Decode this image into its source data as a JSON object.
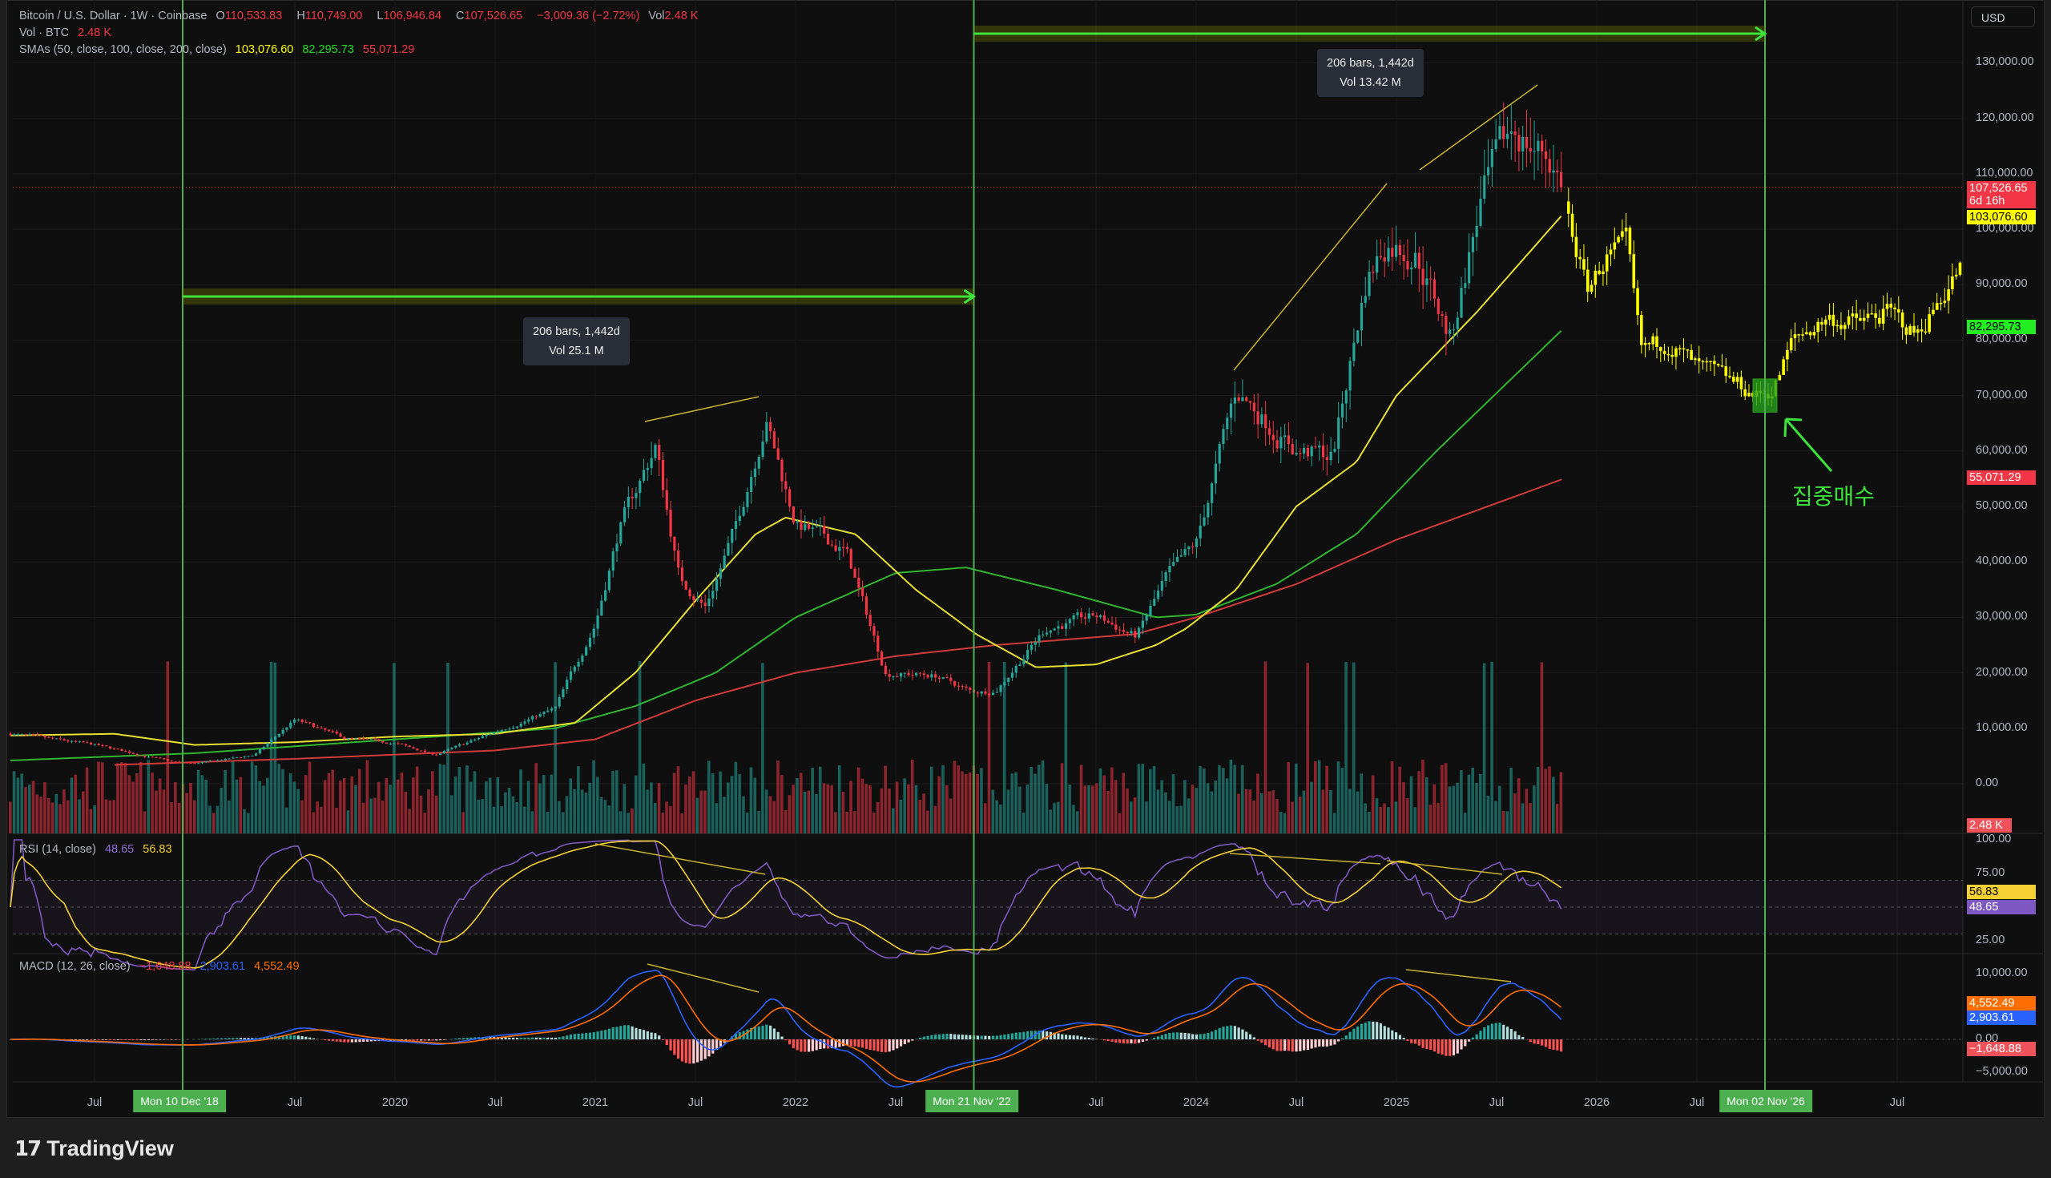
{
  "legend": {
    "symbol": "Bitcoin / U.S. Dollar · 1W · Coinbase",
    "o_label": "O",
    "o": "110,533.83",
    "h_label": "H",
    "h": "110,749.00",
    "l_label": "L",
    "l": "106,946.84",
    "c_label": "C",
    "c": "107,526.65",
    "change": "−3,009.36 (−2.72%)",
    "vol_label": "Vol",
    "vol": "2.48 K",
    "vol_title": "Vol · BTC",
    "vol_value": "2.48 K",
    "sma_title": "SMAs (50, close, 100, close, 200, close)",
    "sma50": "103,076.60",
    "sma100": "82,295.73",
    "sma200": "55,071.29",
    "rsi_title": "RSI (14, close)",
    "rsi": "48.65",
    "rsi_ma": "56.83",
    "macd_title": "MACD (12, 26, close)",
    "macd_hist": "−1,648.88",
    "macd": "2,903.61",
    "macd_signal": "4,552.49"
  },
  "currency": "USD",
  "price_tags": {
    "last": "107,526.65",
    "countdown": "6d 16h",
    "sma50": "103,076.60",
    "sma100": "82,295.73",
    "sma200": "55,071.29",
    "volume": "2.48 K",
    "rsi_ma": "56.83",
    "rsi": "48.65",
    "macd_signal": "4,552.49",
    "macd": "2,903.61",
    "macd_hist": "−1,648.88"
  },
  "measures": [
    {
      "bars": "206 bars, 1,442d",
      "vol": "Vol 25.1 M"
    },
    {
      "bars": "206 bars, 1,442d",
      "vol": "Vol 13.42 M"
    }
  ],
  "date_markers": [
    "Mon 10 Dec '18",
    "Mon 21 Nov '22",
    "Mon 02 Nov '26"
  ],
  "annotation": "집중매수",
  "brand": "TradingView",
  "colors": {
    "up": "#26a69a",
    "down": "#f23645",
    "sma50": "#e8e030",
    "sma100": "#2fb52f",
    "sma200": "#d23a3a",
    "projection": "#ffff00",
    "marker": "#4caf50",
    "rsi": "#7e57c2",
    "rsi_ma": "#f5d033",
    "macd": "#2962ff",
    "signal": "#ff6d00"
  },
  "chart_data": {
    "type": "candlestick",
    "interval": "1W",
    "price_axis": {
      "ticks": [
        "130,000.00",
        "120,000.00",
        "110,000.00",
        "100,000.00",
        "90,000.00",
        "80,000.00",
        "70,000.00",
        "60,000.00",
        "50,000.00",
        "40,000.00",
        "30,000.00",
        "20,000.00",
        "10,000.00",
        "0.00"
      ],
      "values": [
        130000,
        120000,
        110000,
        100000,
        90000,
        80000,
        70000,
        60000,
        50000,
        40000,
        30000,
        20000,
        10000,
        0
      ]
    },
    "rsi_axis": {
      "ticks": [
        "100.00",
        "75.00",
        "25.00"
      ],
      "values": [
        100,
        75,
        25
      ]
    },
    "macd_axis": {
      "ticks": [
        "10,000.00",
        "0.00",
        "−5,000.00"
      ],
      "values": [
        10000,
        0,
        -5000
      ]
    },
    "time_axis": [
      {
        "label": "Jul",
        "t": 2018.5
      },
      {
        "label": "Jul",
        "t": 2019.5
      },
      {
        "label": "2020",
        "t": 2020
      },
      {
        "label": "Jul",
        "t": 2020.5
      },
      {
        "label": "2021",
        "t": 2021
      },
      {
        "label": "Jul",
        "t": 2021.5
      },
      {
        "label": "2022",
        "t": 2022
      },
      {
        "label": "Jul",
        "t": 2022.5
      },
      {
        "label": "Jul",
        "t": 2023.5
      },
      {
        "label": "2024",
        "t": 2024
      },
      {
        "label": "Jul",
        "t": 2024.5
      },
      {
        "label": "2025",
        "t": 2025
      },
      {
        "label": "Jul",
        "t": 2025.5
      },
      {
        "label": "2026",
        "t": 2026
      },
      {
        "label": "Jul",
        "t": 2026.5
      },
      {
        "label": "Jul",
        "t": 2027.5
      }
    ],
    "marker_times": [
      2018.94,
      2022.89,
      2026.84
    ],
    "price_path": [
      [
        2018.08,
        9000
      ],
      [
        2018.5,
        7000
      ],
      [
        2018.88,
        4000
      ],
      [
        2019.0,
        3600
      ],
      [
        2019.3,
        5200
      ],
      [
        2019.5,
        11500
      ],
      [
        2019.75,
        8200
      ],
      [
        2020.0,
        7300
      ],
      [
        2020.2,
        5200
      ],
      [
        2020.5,
        9300
      ],
      [
        2020.8,
        13500
      ],
      [
        2021.0,
        29000
      ],
      [
        2021.12,
        46000
      ],
      [
        2021.3,
        61000
      ],
      [
        2021.42,
        37000
      ],
      [
        2021.55,
        32000
      ],
      [
        2021.7,
        46000
      ],
      [
        2021.85,
        66000
      ],
      [
        2022.0,
        47000
      ],
      [
        2022.25,
        42000
      ],
      [
        2022.45,
        20000
      ],
      [
        2022.7,
        19500
      ],
      [
        2022.88,
        16500
      ],
      [
        2023.0,
        16800
      ],
      [
        2023.25,
        28000
      ],
      [
        2023.5,
        30200
      ],
      [
        2023.7,
        26500
      ],
      [
        2023.85,
        37000
      ],
      [
        2024.0,
        43000
      ],
      [
        2024.2,
        71000
      ],
      [
        2024.5,
        60000
      ],
      [
        2024.68,
        59000
      ],
      [
        2024.85,
        91000
      ],
      [
        2024.95,
        98000
      ],
      [
        2025.1,
        96000
      ],
      [
        2025.27,
        80000
      ],
      [
        2025.42,
        105000
      ],
      [
        2025.58,
        118000
      ],
      [
        2025.76,
        113000
      ],
      [
        2025.84,
        107526
      ]
    ],
    "projection_path": [
      [
        2025.84,
        105000
      ],
      [
        2025.95,
        89000
      ],
      [
        2026.05,
        95000
      ],
      [
        2026.15,
        97000
      ],
      [
        2026.22,
        78000
      ],
      [
        2026.35,
        80000
      ],
      [
        2026.5,
        75000
      ],
      [
        2026.65,
        73000
      ],
      [
        2026.8,
        70000
      ],
      [
        2026.88,
        71000
      ],
      [
        2026.98,
        80000
      ],
      [
        2027.15,
        84000
      ],
      [
        2027.3,
        83000
      ],
      [
        2027.45,
        85000
      ],
      [
        2027.6,
        81000
      ],
      [
        2027.72,
        88000
      ],
      [
        2027.83,
        94000
      ]
    ],
    "sma50": [
      [
        2018.08,
        8700
      ],
      [
        2018.6,
        9000
      ],
      [
        2019.0,
        7000
      ],
      [
        2019.5,
        7500
      ],
      [
        2020.0,
        8500
      ],
      [
        2020.5,
        9000
      ],
      [
        2020.9,
        11000
      ],
      [
        2021.2,
        20000
      ],
      [
        2021.5,
        33000
      ],
      [
        2021.8,
        45000
      ],
      [
        2021.95,
        48000
      ],
      [
        2022.3,
        45000
      ],
      [
        2022.6,
        35000
      ],
      [
        2022.9,
        27000
      ],
      [
        2023.2,
        21000
      ],
      [
        2023.5,
        21500
      ],
      [
        2023.8,
        25000
      ],
      [
        2023.95,
        28000
      ],
      [
        2024.2,
        35000
      ],
      [
        2024.5,
        50000
      ],
      [
        2024.8,
        58000
      ],
      [
        2025.0,
        70000
      ],
      [
        2025.4,
        85000
      ],
      [
        2025.84,
        103076
      ]
    ],
    "sma100": [
      [
        2018.08,
        4200
      ],
      [
        2019.0,
        5500
      ],
      [
        2020.0,
        8000
      ],
      [
        2020.8,
        10000
      ],
      [
        2021.2,
        14000
      ],
      [
        2021.6,
        20000
      ],
      [
        2022.0,
        30000
      ],
      [
        2022.5,
        38000
      ],
      [
        2022.85,
        39000
      ],
      [
        2023.3,
        35000
      ],
      [
        2023.8,
        30000
      ],
      [
        2024.0,
        30500
      ],
      [
        2024.4,
        36000
      ],
      [
        2024.8,
        45000
      ],
      [
        2025.2,
        60000
      ],
      [
        2025.84,
        82295
      ]
    ],
    "sma200": [
      [
        2018.6,
        3400
      ],
      [
        2019.5,
        4500
      ],
      [
        2020.5,
        6000
      ],
      [
        2021.0,
        8000
      ],
      [
        2021.5,
        15000
      ],
      [
        2022.0,
        20000
      ],
      [
        2022.5,
        23000
      ],
      [
        2023.0,
        25000
      ],
      [
        2023.7,
        27000
      ],
      [
        2024.0,
        30000
      ],
      [
        2024.5,
        36000
      ],
      [
        2025.0,
        44000
      ],
      [
        2025.84,
        55071
      ]
    ],
    "last_price": 107526.65,
    "accumulation_zone": {
      "t": [
        2026.78,
        2026.9
      ],
      "price": [
        67000,
        73000
      ]
    }
  }
}
